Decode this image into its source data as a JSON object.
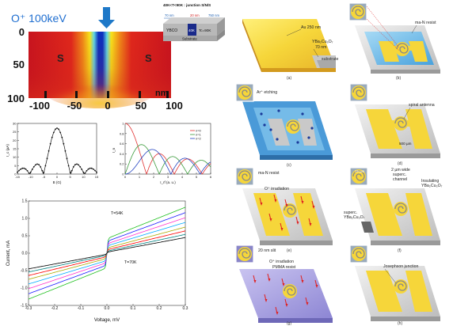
{
  "colormap": {
    "ion_label": "O⁺ 100keV",
    "left_region": "S",
    "right_region": "S",
    "y_ticks": [
      "0",
      "50",
      "100"
    ],
    "x_ticks": [
      "-100",
      "-50",
      "0",
      "50",
      "100"
    ],
    "x_unit": "nm",
    "colors": {
      "arrow": "#1e78c8",
      "hot": "#d9202a",
      "cold": "#0a2fb5"
    }
  },
  "inset": {
    "title": "40K<T<90K : junction S/N/S",
    "w_left": "70 nm",
    "w_mid": "20 nm",
    "w_right": "750 nm",
    "layer_left": "YBCO",
    "layer_mid": "40K",
    "layer_right": "Tc=90K",
    "substrate": "Substrate"
  },
  "fraunhofer": {
    "ylabel": "I_c (µA)",
    "xlabel": "B (G)",
    "y_ticks": [
      "0",
      "5",
      "10",
      "15",
      "20",
      "25",
      "30"
    ],
    "x_ticks": [
      "-15",
      "-10",
      "-5",
      "0",
      "5",
      "10",
      "15"
    ]
  },
  "shapiro": {
    "ylabel": "I_n",
    "xlabel": "I_rf (a. u.)",
    "y_ticks": [
      "0",
      "0.2",
      "0.4",
      "0.6",
      "0.8",
      "1"
    ],
    "x_ticks": [
      "0",
      "1",
      "2",
      "3",
      "4",
      "5",
      "6"
    ],
    "legend": [
      "n=0",
      "n=1",
      "n=2"
    ],
    "colors": [
      "#e03030",
      "#3a9a3a",
      "#2040c0"
    ]
  },
  "iv": {
    "ylabel": "Current, mA",
    "xlabel": "Voltage, mV",
    "y_ticks": [
      "1.5",
      "1.0",
      "0.5",
      "0.0",
      "-0.5",
      "-1.0",
      "-1.5"
    ],
    "x_ticks": [
      "-0.3",
      "-0.2",
      "-0.1",
      "0.0",
      "0.1",
      "0.2",
      "0.3"
    ],
    "label_top": "T=54K",
    "label_bottom": "T=70K",
    "series_colors": [
      "#20c020",
      "#1a1aff",
      "#ff33cc",
      "#00aaff",
      "#aaaa00",
      "#ff0000",
      "#008080",
      "#000000"
    ]
  },
  "panels": {
    "a": {
      "tag": "(a)",
      "gold": "Au 250 nm",
      "ybco": "YBa₂Cu₃O₇",
      "ybco2": "70 nm",
      "sub": "substrate"
    },
    "b": {
      "tag": "(b)",
      "resist": "ma-N resist"
    },
    "c": {
      "tag": "(c)",
      "etch": "Ar⁺ etching"
    },
    "d": {
      "tag": "(d)",
      "antenna": "spiral antenna",
      "scale": "500 µm"
    },
    "e": {
      "tag": "(e)",
      "resist": "ma-N resist",
      "irr": "O⁺ irradiation"
    },
    "f": {
      "tag": "(f)",
      "scale": "15 µm",
      "channel1": "2 µm wide",
      "channel2": "superc.",
      "channel3": "channel",
      "ins1": "Insulating",
      "ins2": "YBa₂Cu₃O₇",
      "sup1": "superc.",
      "sup2": "YBa₂Cu₃O₇"
    },
    "g": {
      "tag": "(g)",
      "slit": "20 nm slit",
      "irr": "O⁺ irradiation",
      "resist": "PMMA resist"
    },
    "h": {
      "tag": "(h)",
      "jj": "Josephson junction"
    }
  }
}
